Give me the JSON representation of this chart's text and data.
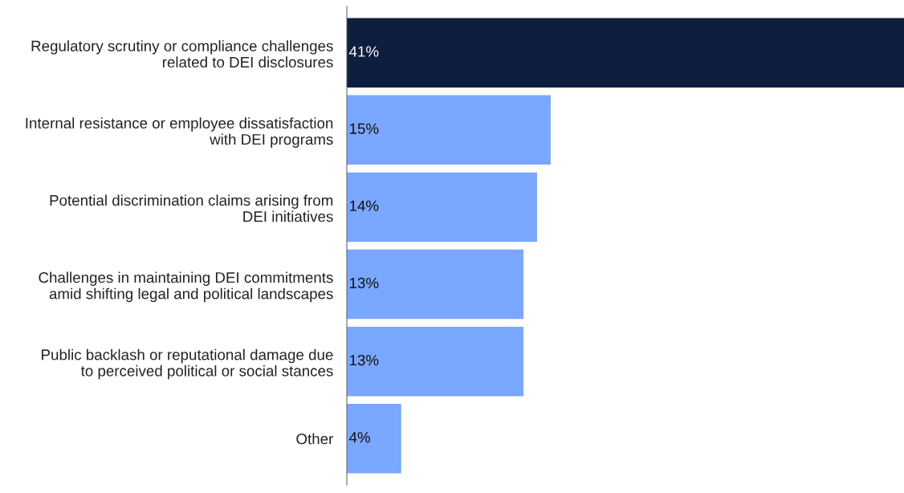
{
  "chart_data": {
    "type": "bar",
    "orientation": "horizontal",
    "categories": [
      "Regulatory scrutiny or compliance challenges\nrelated to DEI disclosures",
      "Internal resistance or employee dissatisfaction\nwith DEI programs",
      "Potential discrimination claims arising from\nDEI initiatives",
      "Challenges in maintaining DEI commitments\namid shifting legal and political landscapes",
      "Public backlash or reputational damage due\nto perceived political or social stances",
      "Other"
    ],
    "values": [
      41,
      15,
      14,
      13,
      13,
      4
    ],
    "value_labels": [
      "41%",
      "15%",
      "14%",
      "13%",
      "13%",
      "4%"
    ],
    "colors": [
      "#0e1e3e",
      "#7aa7ff",
      "#7aa7ff",
      "#7aa7ff",
      "#7aa7ff",
      "#7aa7ff"
    ]
  }
}
